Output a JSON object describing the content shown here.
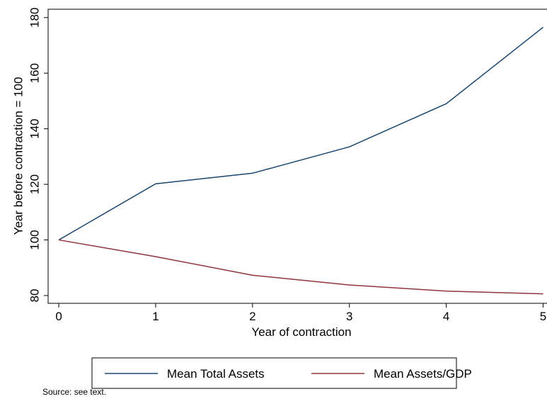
{
  "chart_data": {
    "type": "line",
    "x": [
      0,
      1,
      2,
      3,
      4,
      5
    ],
    "series": [
      {
        "name": "Mean Total Assets",
        "color": "#1a476f",
        "values": [
          100,
          120.2,
          124,
          133.5,
          149,
          176.5
        ]
      },
      {
        "name": "Mean Assets/GDP",
        "color": "#90353b",
        "values": [
          100,
          94,
          87.3,
          83.8,
          81.6,
          80.6
        ]
      }
    ],
    "x_label": "Year of contraction",
    "y_label": "Year before contraction = 100",
    "xlim": [
      -0.11,
      5.04
    ],
    "xticks": [
      0,
      1,
      2,
      3,
      4,
      5
    ],
    "ylim": [
      77.2,
      183
    ],
    "yticks": [
      80,
      100,
      120,
      140,
      160,
      180
    ],
    "note": "Source: see text."
  }
}
